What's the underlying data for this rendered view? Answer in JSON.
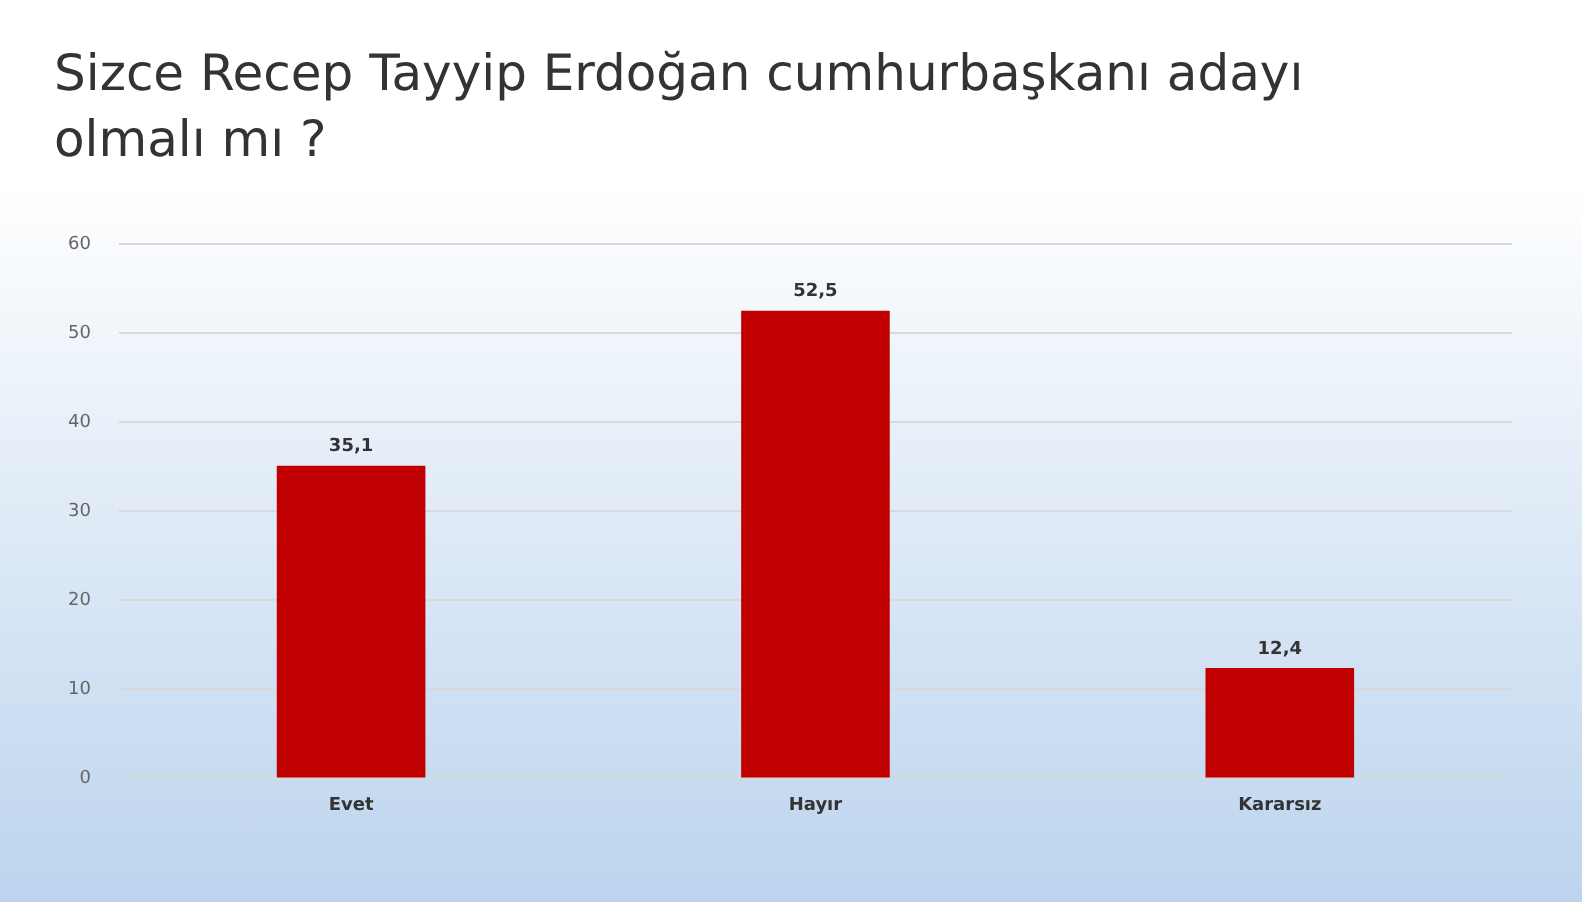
{
  "chart_data": {
    "type": "bar",
    "title": "Sizce Recep Tayyip Erdoğan cumhurbaşkanı adayı olmalı mı ?",
    "categories": [
      "Evet",
      "Hayır",
      "Kararsız"
    ],
    "values": [
      35.1,
      52.5,
      12.4
    ],
    "color": "#c00000",
    "value_labels": [
      "35,1",
      "52,5",
      "12,4"
    ],
    "ylim": [
      0,
      60
    ],
    "yticks": [
      0,
      10,
      20,
      30,
      40,
      50,
      60
    ],
    "grid": "y"
  }
}
